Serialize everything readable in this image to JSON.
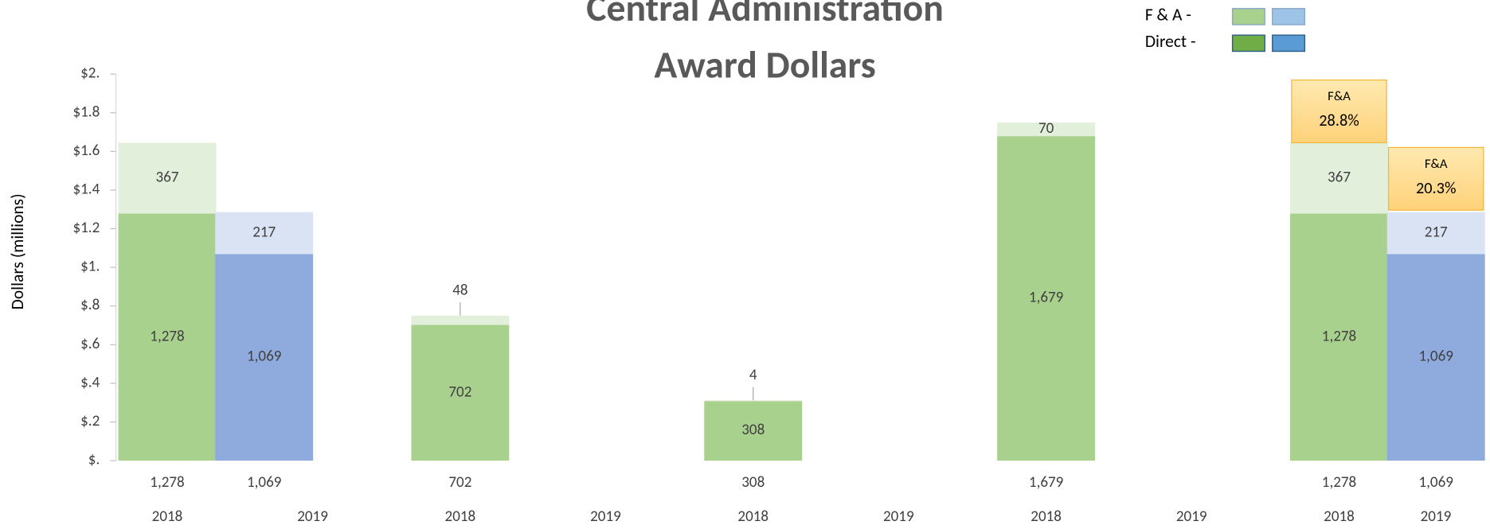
{
  "chart_data": {
    "type": "stacked_bar",
    "title": [
      "Central Administration",
      "Award Dollars"
    ],
    "y_label": "Dollars (millions)",
    "categories": [
      "2018",
      "2019",
      "2018",
      "2019",
      "2018",
      "2019",
      "2018",
      "2019",
      "2018",
      "2019"
    ],
    "series": [
      {
        "name": "Direct -",
        "colors": [
          "#a9d18e",
          "#8faadc"
        ],
        "legend_colors": [
          "#70ad47",
          "#5b9bd5"
        ],
        "values": [
          1.278,
          1.069,
          0.702,
          null,
          0.308,
          null,
          1.679,
          null,
          1.278,
          1.069
        ],
        "value_labels": [
          "1,278",
          "1,069",
          "702",
          null,
          "308",
          null,
          "1,679",
          null,
          "1,278",
          "1,069"
        ]
      },
      {
        "name": "F & A -",
        "colors": [
          "#e2efda",
          "#dae3f3"
        ],
        "legend_colors": [
          "#a9d18e",
          "#9dc3e6"
        ],
        "values": [
          0.367,
          0.217,
          0.048,
          null,
          0.004,
          null,
          0.07,
          null,
          0.367,
          0.217
        ],
        "value_labels": [
          "367",
          "217",
          "48",
          null,
          "4",
          null,
          "70",
          null,
          "367",
          "217"
        ]
      }
    ],
    "ylim": [
      0,
      2
    ],
    "yticks": [
      {
        "value": 0,
        "label": "$."
      },
      {
        "value": 0.2,
        "label": "$.2"
      },
      {
        "value": 0.4,
        "label": "$.4"
      },
      {
        "value": 0.6,
        "label": "$.6"
      },
      {
        "value": 0.8,
        "label": "$.8"
      },
      {
        "value": 1,
        "label": "$1."
      },
      {
        "value": 1.2,
        "label": "$1.2"
      },
      {
        "value": 1.4,
        "label": "$1.4"
      },
      {
        "value": 1.6,
        "label": "$1.6"
      },
      {
        "value": 1.8,
        "label": "$1.8"
      },
      {
        "value": 2,
        "label": "$2."
      }
    ],
    "annotations": [
      {
        "title": "F&A",
        "value": 28.8,
        "value_label": "28.8%",
        "category_index": 8
      },
      {
        "title": "F&A",
        "value": 20.3,
        "value_label": "20.3%",
        "category_index": 9
      }
    ]
  }
}
